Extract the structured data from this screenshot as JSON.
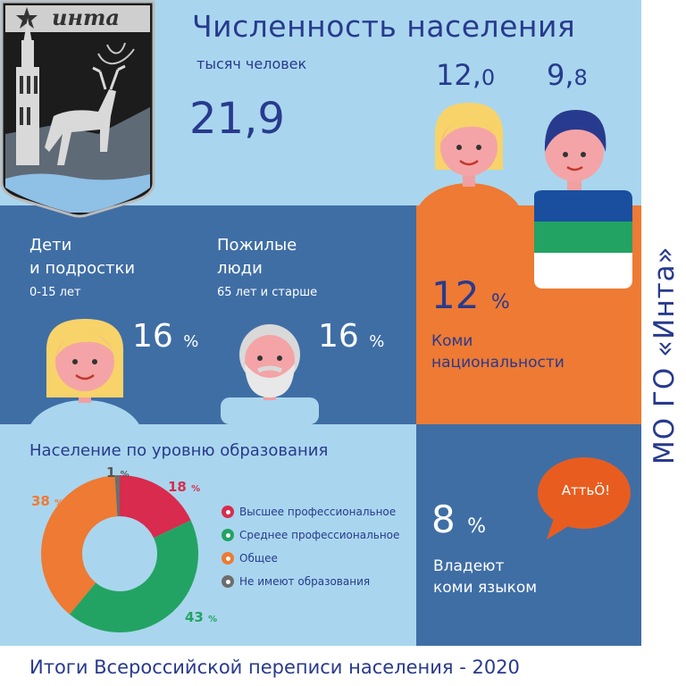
{
  "header": {
    "title": "Численность населения",
    "unit": "тысяч человек",
    "total": "21,9",
    "female_int": "12,",
    "female_frac": "0",
    "male_int": "9,",
    "male_frac": "8"
  },
  "age_groups": {
    "kids_line1": "Дети",
    "kids_line2": "и подростки",
    "kids_range": "0-15 лет",
    "kids_value": "16",
    "elderly_line1": "Пожилые",
    "elderly_line2": "люди",
    "elderly_range": "65 лет и старше",
    "elderly_value": "16",
    "percent_sign": "%"
  },
  "komi": {
    "value": "12",
    "line1": "Коми",
    "line2": "национальности"
  },
  "education": {
    "title": "Население по уровню образования",
    "legend": [
      {
        "label": "Высшее профессиональное",
        "color": "#d92b4d"
      },
      {
        "label": "Среднее профессиональное",
        "color": "#23a363"
      },
      {
        "label": "Общее",
        "color": "#ee7a33"
      },
      {
        "label": "Не имеют образования",
        "color": "#6d6d6d"
      }
    ],
    "chart_data": {
      "type": "pie",
      "categories": [
        "Высшее профессиональное",
        "Среднее профессиональное",
        "Общее",
        "Не имеют образования"
      ],
      "values": [
        18,
        43,
        38,
        1
      ],
      "colors": [
        "#d92b4d",
        "#23a363",
        "#ee7a33",
        "#6d6d6d"
      ],
      "value_labels": [
        "18",
        "43",
        "38",
        "1"
      ],
      "unit": "%"
    }
  },
  "language": {
    "value": "8",
    "line1": "Владеют",
    "line2": "коми языком",
    "bubble": "АттьÖ!"
  },
  "emblem": {
    "name": "инта"
  },
  "side": {
    "text": "МО ГО «Инта»"
  },
  "footer": {
    "text": "Итоги Всероссийской переписи населения - 2020"
  },
  "colors": {
    "light_blue": "#a9d6ee",
    "navy_panel": "#3f6ea5",
    "orange": "#ee7a33",
    "title_navy": "#283a8e"
  }
}
